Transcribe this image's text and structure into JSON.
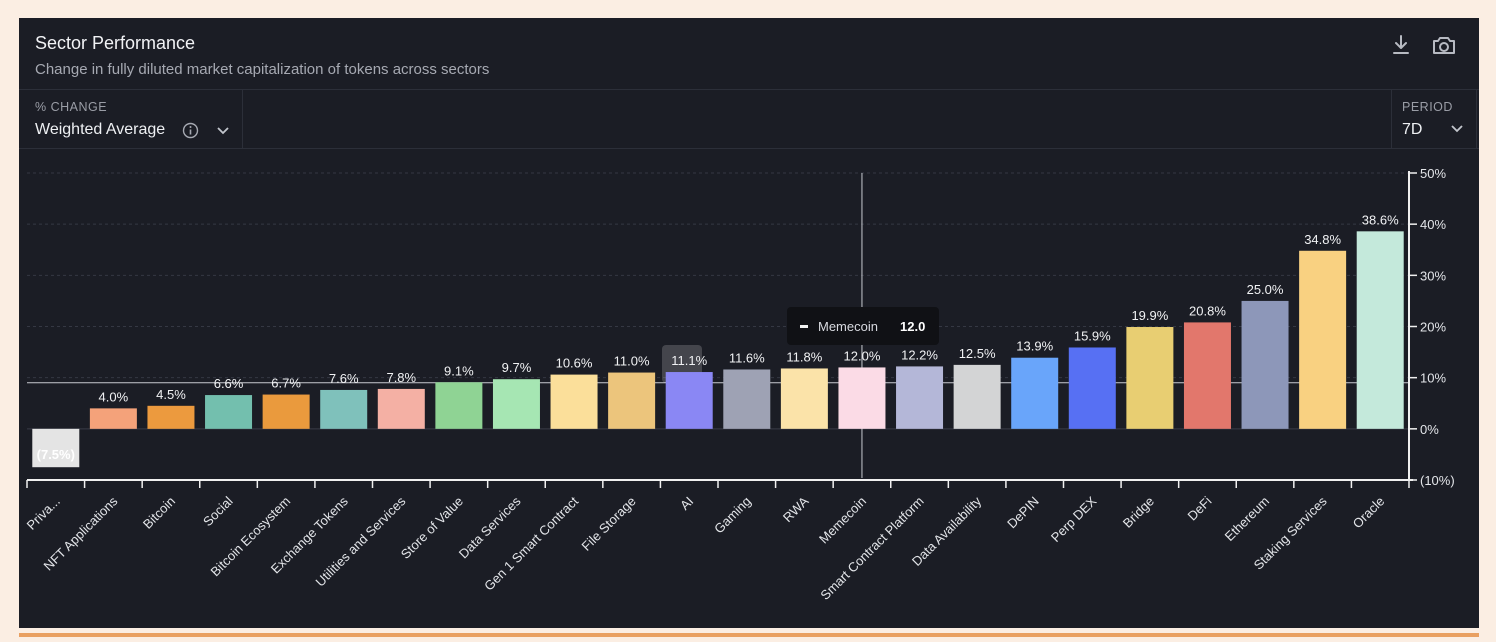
{
  "header": {
    "title": "Sector Performance",
    "subtitle": "Change in fully diluted market capitalization of tokens across sectors"
  },
  "filters": {
    "change": {
      "label": "% CHANGE",
      "value": "Weighted Average"
    },
    "period": {
      "label": "PERIOD",
      "value": "7D"
    }
  },
  "tooltip": {
    "series": "Memecoin",
    "value": "12.0"
  },
  "icons": {
    "download": "download-icon",
    "camera": "camera-icon",
    "info": "info-icon",
    "chevron": "chevron-down-icon"
  },
  "chart_data": {
    "type": "bar",
    "categories": [
      "Privacy",
      "NFT Applications",
      "Bitcoin",
      "Social",
      "Bitcoin Ecosystem",
      "Exchange Tokens",
      "Utilities and Services",
      "Store of Value",
      "Data Services",
      "Gen 1 Smart Contract",
      "File Storage",
      "AI",
      "Gaming",
      "RWA",
      "Memecoin",
      "Smart Contract Platform",
      "Data Availability",
      "DePIN",
      "Perp DEX",
      "Bridge",
      "DeFi",
      "Ethereum",
      "Staking Services",
      "Oracle"
    ],
    "category_labels": [
      "Priva...",
      "NFT Applications",
      "Bitcoin",
      "Social",
      "Bitcoin Ecosystem",
      "Exchange Tokens",
      "Utilities and Services",
      "Store of Value",
      "Data Services",
      "Gen 1 Smart Contract",
      "File Storage",
      "AI",
      "Gaming",
      "RWA",
      "Memecoin",
      "Smart Contract Platform",
      "Data Availability",
      "DePIN",
      "Perp DEX",
      "Bridge",
      "DeFi",
      "Ethereum",
      "Staking Services",
      "Oracle"
    ],
    "values": [
      -7.5,
      4.0,
      4.5,
      6.6,
      6.7,
      7.6,
      7.8,
      9.1,
      9.7,
      10.6,
      11.0,
      11.1,
      11.6,
      11.8,
      12.0,
      12.2,
      12.5,
      13.9,
      15.9,
      19.9,
      20.8,
      25.0,
      34.8,
      38.6
    ],
    "value_labels": [
      "(7.5%)",
      "4.0%",
      "4.5%",
      "6.6%",
      "6.7%",
      "7.6%",
      "7.8%",
      "9.1%",
      "9.7%",
      "10.6%",
      "11.0%",
      "11.1%",
      "11.6%",
      "11.8%",
      "12.0%",
      "12.2%",
      "12.5%",
      "13.9%",
      "15.9%",
      "19.9%",
      "20.8%",
      "25.0%",
      "34.8%",
      "38.6%"
    ],
    "colors": [
      "#e4e4e4",
      "#f4a27a",
      "#ec9a3e",
      "#73bfae",
      "#ea9a3d",
      "#7fc1bb",
      "#f4b0a4",
      "#8fd394",
      "#a6e6b3",
      "#fbdf9a",
      "#ecc57c",
      "#8a87f4",
      "#9ea2b4",
      "#fbe3a9",
      "#fbdbe6",
      "#b4b7d8",
      "#d3d4d5",
      "#69a5fa",
      "#5770f3",
      "#e8ce72",
      "#e2776c",
      "#8d97b9",
      "#f9d181",
      "#c4e9db"
    ],
    "ylim": [
      -10,
      50
    ],
    "yticks": [
      -10,
      0,
      10,
      20,
      30,
      40,
      50
    ],
    "ytick_labels": [
      "(10%)",
      "0%",
      "10%",
      "20%",
      "30%",
      "40%",
      "50%"
    ],
    "crosshair_category": "Memecoin",
    "crosshair_y": 9,
    "grid": true,
    "legend": "none"
  }
}
